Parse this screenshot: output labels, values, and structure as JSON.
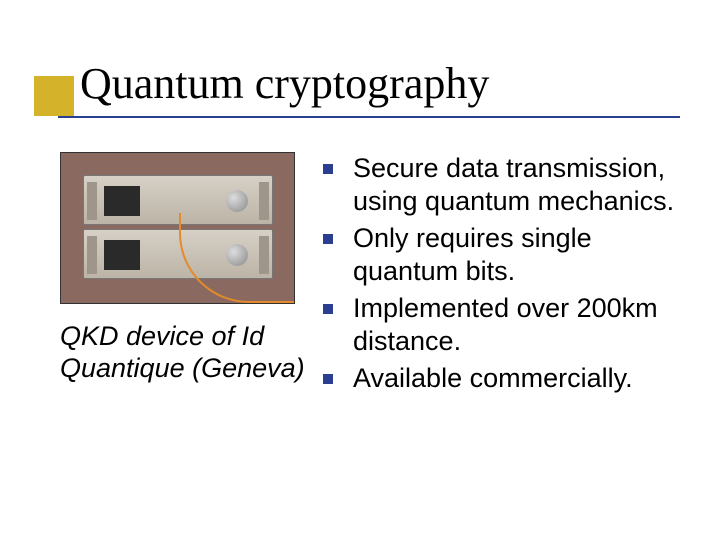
{
  "colors": {
    "accent": "#d4b22a",
    "rule": "#2a3f8f",
    "title": "#000000",
    "body": "#000000",
    "bullet": "#2a3f8f"
  },
  "title": "Quantum cryptography",
  "image": {
    "caption": "QKD device of Id Quantique (Geneva)"
  },
  "bullets": [
    "Secure data transmission, using quantum mechanics.",
    "Only requires single quantum bits.",
    "Implemented over 200km distance.",
    "Available commercially."
  ]
}
